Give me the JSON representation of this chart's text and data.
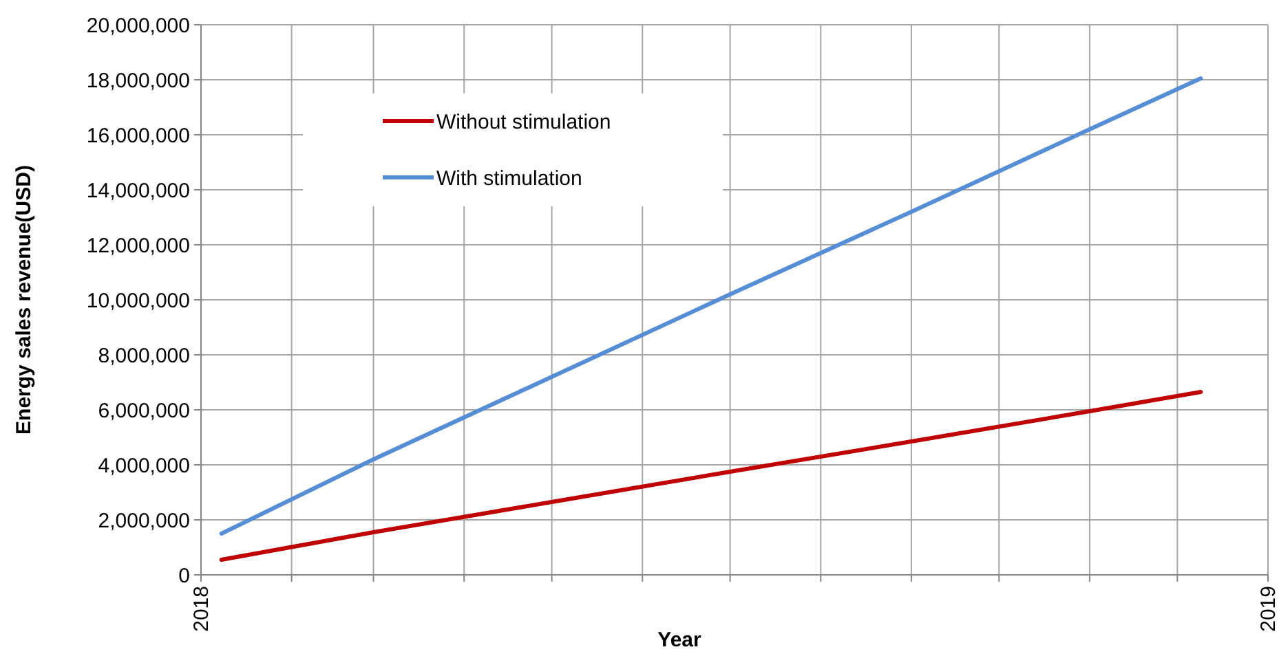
{
  "chart_data": {
    "type": "line",
    "xlabel": "Year",
    "ylabel": "Energy sales  revenue(USD)",
    "x": [
      "2018-01-08",
      "2018-03-01",
      "2018-05-01",
      "2018-07-01",
      "2018-09-01",
      "2018-11-01",
      "2018-12-09"
    ],
    "series": [
      {
        "name": "Without stimulation",
        "color": "#c00000",
        "values": [
          550000,
          1550000,
          2650000,
          3750000,
          4850000,
          5950000,
          6650000
        ]
      },
      {
        "name": "With stimulation",
        "color": "#558ed5",
        "values": [
          1500000,
          4200000,
          7200000,
          10200000,
          13200000,
          16200000,
          18050000
        ]
      }
    ],
    "xlim": [
      "2018-01-01",
      "2019-01-01"
    ],
    "xticks": [
      {
        "value": "2018-01-01",
        "label": "2018"
      },
      {
        "value": "2018-02-01",
        "label": null
      },
      {
        "value": "2018-03-01",
        "label": null
      },
      {
        "value": "2018-04-01",
        "label": null
      },
      {
        "value": "2018-05-01",
        "label": null
      },
      {
        "value": "2018-06-01",
        "label": null
      },
      {
        "value": "2018-07-01",
        "label": null
      },
      {
        "value": "2018-08-01",
        "label": null
      },
      {
        "value": "2018-09-01",
        "label": null
      },
      {
        "value": "2018-10-01",
        "label": null
      },
      {
        "value": "2018-11-01",
        "label": null
      },
      {
        "value": "2018-12-01",
        "label": null
      },
      {
        "value": "2019-01-01",
        "label": "2019"
      }
    ],
    "ylim": [
      0,
      20000000
    ],
    "yticks": [
      0,
      {
        "value": 2000000,
        "label": "2,000,000"
      },
      {
        "value": 4000000,
        "label": "4,000,000"
      },
      {
        "value": 6000000,
        "label": "6,000,000"
      },
      {
        "value": 8000000,
        "label": "8,000,000"
      },
      {
        "value": 10000000,
        "label": "10,000,000"
      },
      {
        "value": 12000000,
        "label": "12,000,000"
      },
      {
        "value": 14000000,
        "label": "14,000,000"
      },
      {
        "value": 16000000,
        "label": "16,000,000"
      },
      {
        "value": 18000000,
        "label": "18,000,000"
      },
      {
        "value": 20000000,
        "label": "20,000,000"
      }
    ],
    "grid": true,
    "legend": "top left",
    "marker": "none",
    "line_style": "solid"
  }
}
